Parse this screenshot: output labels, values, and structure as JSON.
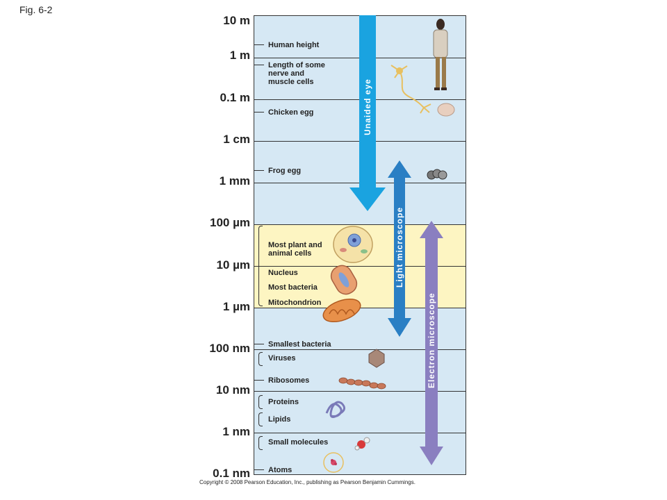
{
  "figure_label": "Fig. 6-2",
  "scale_labels": [
    "10 m",
    "1 m",
    "0.1 m",
    "1 cm",
    "1 mm",
    "100 µm",
    "10 µm",
    "1 µm",
    "100 nm",
    "10 nm",
    "1 nm",
    "0.1 nm"
  ],
  "items": {
    "human_height": "Human height",
    "nerve_cells": "Length of some\nnerve and\nmuscle cells",
    "chicken_egg": "Chicken egg",
    "frog_egg": "Frog egg",
    "plant_animal_cells": "Most plant and\nanimal cells",
    "nucleus": "Nucleus",
    "bacteria": "Most bacteria",
    "mitochondrion": "Mitochondrion",
    "smallest_bacteria": "Smallest bacteria",
    "viruses": "Viruses",
    "ribosomes": "Ribosomes",
    "proteins": "Proteins",
    "lipids": "Lipids",
    "small_molecules": "Small molecules",
    "atoms": "Atoms"
  },
  "arrows": {
    "unaided_eye": "Unaided eye",
    "light_microscope": "Light microscope",
    "electron_microscope": "Electron microscope"
  },
  "colors": {
    "panel_bg": "#d6e8f4",
    "cell_band": "#fdf5c2",
    "unaided_eye": "#1aa3e0",
    "light_microscope": "#2a7fc4",
    "electron_microscope": "#8a7fc0"
  },
  "copyright": "Copyright © 2008 Pearson Education, Inc., publishing as Pearson Benjamin Cummings."
}
